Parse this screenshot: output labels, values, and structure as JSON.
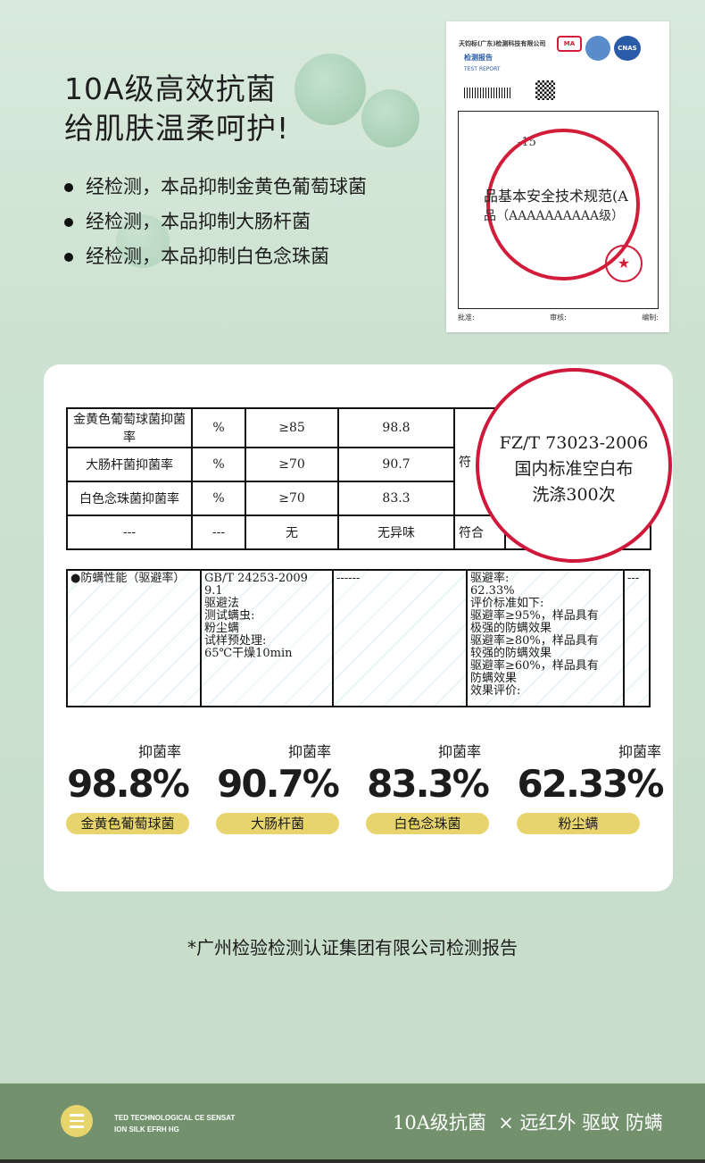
{
  "hero": {
    "line1": "10A级高效抗菌",
    "line2": "给肌肤温柔呵护!",
    "bullets": [
      "经检测，本品抑制金黄色葡萄球菌",
      "经检测，本品抑制大肠杆菌",
      "经检测，本品抑制白色念珠菌"
    ]
  },
  "certificate": {
    "company": "天钧标(广东)检测科技有限公司",
    "report_cn": "检测报告",
    "report_en": "TEST REPORT",
    "logos": [
      "MA",
      "CNAS"
    ],
    "magnified_line1": "品基本安全技术规范(A",
    "magnified_line2": "品（AAAAAAAAAA级）",
    "fragment": "-15",
    "signatures": [
      "批准:",
      "审核:",
      "编制:"
    ]
  },
  "antibacterial_table": {
    "rows": [
      [
        "金黄色葡萄球菌抑菌率",
        "%",
        "≥85",
        "98.8"
      ],
      [
        "大肠杆菌抑菌率",
        "%",
        "≥70",
        "90.7"
      ],
      [
        "白色念珠菌抑菌率",
        "%",
        "≥70",
        "83.3"
      ],
      [
        "---",
        "---",
        "无",
        "无异味",
        "符合"
      ]
    ],
    "partial_cell": "符",
    "magnified": [
      "FZ/T 73023-2006",
      "国内标准空白布",
      "洗涤300次"
    ]
  },
  "mite_table": {
    "item": "●防螨性能（驱避率）",
    "method": "GB/T 24253-2009\n9.1\n驱避法\n测试螨虫:\n粉尘螨\n试样预处理:\n65℃干燥10min",
    "requirement": "------",
    "result": "驱避率:\n62.33%\n评价标准如下:\n驱避率≥95%，样品具有\n极强的防螨效果\n驱避率≥80%，样品具有\n较强的防螨效果\n驱避率≥60%，样品具有\n防螨效果\n效果评价:",
    "judgement": "---"
  },
  "stats": [
    {
      "label": "抑菌率",
      "value": "98.8%",
      "name": "金黄色葡萄球菌"
    },
    {
      "label": "抑菌率",
      "value": "90.7%",
      "name": "大肠杆菌"
    },
    {
      "label": "抑菌率",
      "value": "83.3%",
      "name": "白色念珠菌"
    },
    {
      "label": "抑菌率",
      "value": "62.33%",
      "name": "粉尘螨"
    }
  ],
  "footnote": "*广州检验检测认证集团有限公司检测报告",
  "footer": {
    "tagline1": "TED TECHNOLOGICAL CE SENSAT",
    "tagline2": "ION SILK EFRH HG",
    "slogan": "10A级抗菌  × 远红外 驱蚊 防螨"
  },
  "colors": {
    "accent_yellow": "#e8d46c",
    "footer_green": "#72916c",
    "stamp_red": "#d0183b"
  }
}
